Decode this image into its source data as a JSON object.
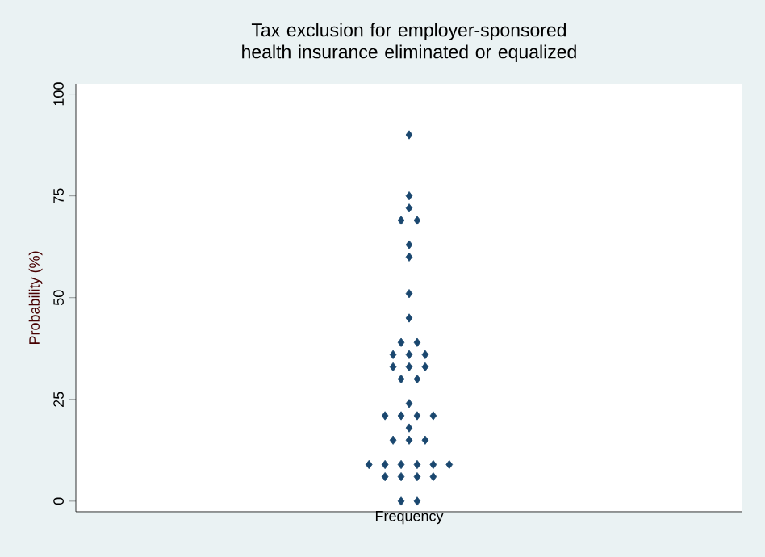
{
  "chart_data": {
    "type": "scatter",
    "title": "Tax exclusion for employer-sponsored health insurance eliminated or equalized",
    "xlabel": "Frequency",
    "ylabel": "Probability (%)",
    "ylim": [
      -2.6,
      102.5
    ],
    "yticks": [
      0,
      25,
      50,
      75,
      100
    ],
    "categories": [
      null,
      null,
      null,
      null,
      null,
      null,
      null,
      null,
      null,
      null,
      null,
      null,
      null,
      null,
      null,
      null,
      null,
      null,
      null,
      null,
      null,
      null,
      null,
      null,
      null,
      null,
      null,
      null,
      null,
      null,
      null,
      null,
      null,
      null,
      null,
      null,
      null,
      null,
      null,
      null,
      null,
      null,
      null,
      null,
      null,
      null,
      null,
      null,
      null,
      null,
      null,
      null,
      null,
      null,
      null,
      null,
      null,
      null,
      null,
      null,
      null,
      null,
      null,
      null,
      null,
      null,
      null,
      null,
      null,
      null,
      null,
      null,
      null,
      null,
      null,
      null,
      null,
      null,
      null,
      null,
      null,
      null,
      null
    ],
    "tick_labels": "y",
    "marker": "diamond",
    "series": [
      {
        "color": "#1a476f",
        "values": [
          null,
          null,
          null,
          null,
          null,
          null,
          null,
          null,
          null,
          null,
          null,
          null,
          null,
          null,
          null,
          null,
          null,
          null,
          null,
          null,
          null,
          null,
          null,
          null,
          null,
          null,
          null,
          null,
          null,
          null,
          null,
          null,
          null,
          null,
          null,
          null,
          9,
          null,
          21,
          36,
          69,
          90,
          69,
          36,
          21,
          null,
          9,
          null,
          null,
          null,
          null,
          null,
          null,
          null,
          null,
          null,
          null,
          null,
          null,
          null,
          null,
          null,
          null,
          null,
          null,
          null,
          null,
          null,
          null,
          null,
          null,
          null,
          null,
          null,
          null,
          null,
          null,
          null,
          null,
          null,
          null,
          null,
          null
        ]
      },
      {
        "color": "#1a476f",
        "values": [
          null,
          null,
          null,
          null,
          null,
          null,
          null,
          null,
          null,
          null,
          null,
          null,
          null,
          null,
          null,
          null,
          null,
          null,
          null,
          null,
          null,
          null,
          null,
          null,
          null,
          null,
          null,
          null,
          null,
          null,
          null,
          null,
          null,
          null,
          null,
          null,
          null,
          null,
          9,
          33,
          39,
          75,
          39,
          33,
          9,
          null,
          null,
          null,
          null,
          null,
          null,
          null,
          null,
          null,
          null,
          null,
          null,
          null,
          null,
          null,
          null,
          null,
          null,
          null,
          null,
          null,
          null,
          null,
          null,
          null,
          null,
          null,
          null,
          null,
          null,
          null,
          null,
          null,
          null,
          null,
          null,
          null,
          null
        ]
      },
      {
        "color": "#1a476f",
        "values": [
          null,
          null,
          null,
          null,
          null,
          null,
          null,
          null,
          null,
          null,
          null,
          null,
          null,
          null,
          null,
          null,
          null,
          null,
          null,
          null,
          null,
          null,
          null,
          null,
          null,
          null,
          null,
          null,
          null,
          null,
          null,
          null,
          null,
          null,
          null,
          null,
          null,
          null,
          6,
          15,
          30,
          72,
          30,
          15,
          6,
          null,
          null,
          null,
          null,
          null,
          null,
          null,
          null,
          null,
          null,
          null,
          null,
          null,
          null,
          null,
          null,
          null,
          null,
          null,
          null,
          null,
          null,
          null,
          null,
          null,
          null,
          null,
          null,
          null,
          null,
          null,
          null,
          null,
          null,
          null,
          null,
          null,
          null
        ]
      },
      {
        "color": "#1a476f",
        "values": [
          null,
          null,
          null,
          null,
          null,
          null,
          null,
          null,
          null,
          null,
          null,
          null,
          null,
          null,
          null,
          null,
          null,
          null,
          null,
          null,
          null,
          null,
          null,
          null,
          null,
          null,
          null,
          null,
          null,
          null,
          null,
          null,
          null,
          null,
          null,
          null,
          null,
          null,
          null,
          null,
          21,
          63,
          21,
          null,
          null,
          null,
          null,
          null,
          null,
          null,
          null,
          null,
          null,
          null,
          null,
          null,
          null,
          null,
          null,
          null,
          null,
          null,
          null,
          null,
          null,
          null,
          null,
          null,
          null,
          null,
          null,
          null,
          null,
          null,
          null,
          null,
          null,
          null,
          null,
          null,
          null,
          null,
          null
        ]
      },
      {
        "color": "#1a476f",
        "values": [
          null,
          null,
          null,
          null,
          null,
          null,
          null,
          null,
          null,
          null,
          null,
          null,
          null,
          null,
          null,
          null,
          null,
          null,
          null,
          null,
          null,
          null,
          null,
          null,
          null,
          null,
          null,
          null,
          null,
          null,
          null,
          null,
          null,
          null,
          null,
          null,
          null,
          null,
          null,
          null,
          9,
          60,
          9,
          null,
          null,
          null,
          null,
          null,
          null,
          null,
          null,
          null,
          null,
          null,
          null,
          null,
          null,
          null,
          null,
          null,
          null,
          null,
          null,
          null,
          null,
          null,
          null,
          null,
          null,
          null,
          null,
          null,
          null,
          null,
          null,
          null,
          null,
          null,
          null,
          null,
          null,
          null,
          null
        ]
      },
      {
        "color": "#1a476f",
        "values": [
          null,
          null,
          null,
          null,
          null,
          null,
          null,
          null,
          null,
          null,
          null,
          null,
          null,
          null,
          null,
          null,
          null,
          null,
          null,
          null,
          null,
          null,
          null,
          null,
          null,
          null,
          null,
          null,
          null,
          null,
          null,
          null,
          null,
          null,
          null,
          null,
          null,
          null,
          null,
          null,
          6,
          51,
          6,
          null,
          null,
          null,
          null,
          null,
          null,
          null,
          null,
          null,
          null,
          null,
          null,
          null,
          null,
          null,
          null,
          null,
          null,
          null,
          null,
          null,
          null,
          null,
          null,
          null,
          null,
          null,
          null,
          null,
          null,
          null,
          null,
          null,
          null,
          null,
          null,
          null,
          null,
          null,
          null
        ]
      },
      {
        "color": "#1a476f",
        "values": [
          null,
          null,
          null,
          null,
          null,
          null,
          null,
          null,
          null,
          null,
          null,
          null,
          null,
          null,
          null,
          null,
          null,
          null,
          null,
          null,
          null,
          null,
          null,
          null,
          null,
          null,
          null,
          null,
          null,
          null,
          null,
          null,
          null,
          null,
          null,
          null,
          null,
          null,
          null,
          null,
          0,
          45,
          0,
          null,
          null,
          null,
          null,
          null,
          null,
          null,
          null,
          null,
          null,
          null,
          null,
          null,
          null,
          null,
          null,
          null,
          null,
          null,
          null,
          null,
          null,
          null,
          null,
          null,
          null,
          null,
          null,
          null,
          null,
          null,
          null,
          null,
          null,
          null,
          null,
          null,
          null,
          null,
          null
        ]
      },
      {
        "color": "#1a476f",
        "values": [
          null,
          null,
          null,
          null,
          null,
          null,
          null,
          null,
          null,
          null,
          null,
          null,
          null,
          null,
          null,
          null,
          null,
          null,
          null,
          null,
          null,
          null,
          null,
          null,
          null,
          null,
          null,
          null,
          null,
          null,
          null,
          null,
          null,
          null,
          null,
          null,
          null,
          null,
          null,
          null,
          null,
          36,
          null,
          null,
          null,
          null,
          null,
          null,
          null,
          null,
          null,
          null,
          null,
          null,
          null,
          null,
          null,
          null,
          null,
          null,
          null,
          null,
          null,
          null,
          null,
          null,
          null,
          null,
          null,
          null,
          null,
          null,
          null,
          null,
          null,
          null,
          null,
          null,
          null,
          null,
          null,
          null,
          null
        ]
      },
      {
        "color": "#1a476f",
        "values": [
          null,
          null,
          null,
          null,
          null,
          null,
          null,
          null,
          null,
          null,
          null,
          null,
          null,
          null,
          null,
          null,
          null,
          null,
          null,
          null,
          null,
          null,
          null,
          null,
          null,
          null,
          null,
          null,
          null,
          null,
          null,
          null,
          null,
          null,
          null,
          null,
          null,
          null,
          null,
          null,
          null,
          33,
          null,
          null,
          null,
          null,
          null,
          null,
          null,
          null,
          null,
          null,
          null,
          null,
          null,
          null,
          null,
          null,
          null,
          null,
          null,
          null,
          null,
          null,
          null,
          null,
          null,
          null,
          null,
          null,
          null,
          null,
          null,
          null,
          null,
          null,
          null,
          null,
          null,
          null,
          null,
          null,
          null
        ]
      },
      {
        "color": "#1a476f",
        "values": [
          null,
          null,
          null,
          null,
          null,
          null,
          null,
          null,
          null,
          null,
          null,
          null,
          null,
          null,
          null,
          null,
          null,
          null,
          null,
          null,
          null,
          null,
          null,
          null,
          null,
          null,
          null,
          null,
          null,
          null,
          null,
          null,
          null,
          null,
          null,
          null,
          null,
          null,
          null,
          null,
          null,
          24,
          null,
          null,
          null,
          null,
          null,
          null,
          null,
          null,
          null,
          null,
          null,
          null,
          null,
          null,
          null,
          null,
          null,
          null,
          null,
          null,
          null,
          null,
          null,
          null,
          null,
          null,
          null,
          null,
          null,
          null,
          null,
          null,
          null,
          null,
          null,
          null,
          null,
          null,
          null,
          null,
          null
        ]
      },
      {
        "color": "#1a476f",
        "values": [
          null,
          null,
          null,
          null,
          null,
          null,
          null,
          null,
          null,
          null,
          null,
          null,
          null,
          null,
          null,
          null,
          null,
          null,
          null,
          null,
          null,
          null,
          null,
          null,
          null,
          null,
          null,
          null,
          null,
          null,
          null,
          null,
          null,
          null,
          null,
          null,
          null,
          null,
          null,
          null,
          null,
          18,
          null,
          null,
          null,
          null,
          null,
          null,
          null,
          null,
          null,
          null,
          null,
          null,
          null,
          null,
          null,
          null,
          null,
          null,
          null,
          null,
          null,
          null,
          null,
          null,
          null,
          null,
          null,
          null,
          null,
          null,
          null,
          null,
          null,
          null,
          null,
          null,
          null,
          null,
          null,
          null,
          null
        ]
      },
      {
        "color": "#1a476f",
        "values": [
          null,
          null,
          null,
          null,
          null,
          null,
          null,
          null,
          null,
          null,
          null,
          null,
          null,
          null,
          null,
          null,
          null,
          null,
          null,
          null,
          null,
          null,
          null,
          null,
          null,
          null,
          null,
          null,
          null,
          null,
          null,
          null,
          null,
          null,
          null,
          null,
          null,
          null,
          null,
          null,
          null,
          15,
          null,
          null,
          null,
          null,
          null,
          null,
          null,
          null,
          null,
          null,
          null,
          null,
          null,
          null,
          null,
          null,
          null,
          null,
          null,
          null,
          null,
          null,
          null,
          null,
          null,
          null,
          null,
          null,
          null,
          null,
          null,
          null,
          null,
          null,
          null,
          null,
          null,
          null,
          null,
          null,
          null
        ]
      }
    ]
  }
}
